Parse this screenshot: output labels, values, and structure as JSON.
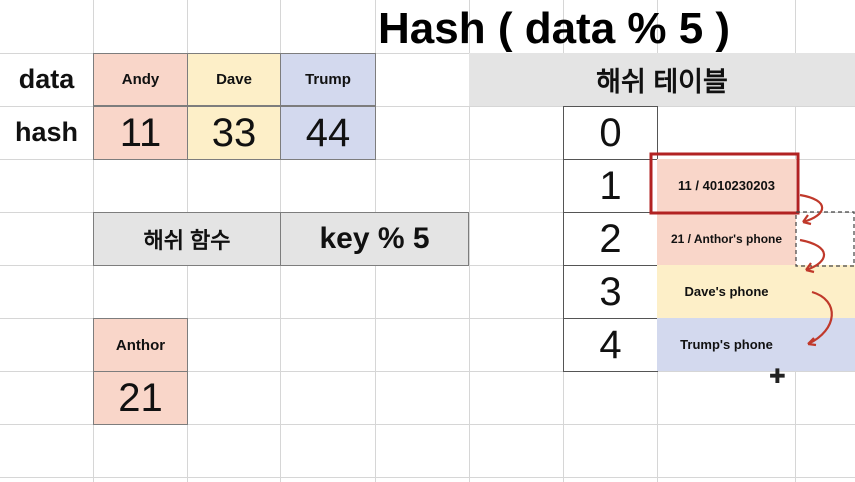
{
  "title": "Hash ( data % 5 )",
  "labels": {
    "data": "data",
    "hash": "hash"
  },
  "data_row": [
    {
      "name": "Andy",
      "hash": "11",
      "color": "#f9d6c9"
    },
    {
      "name": "Dave",
      "hash": "33",
      "color": "#fdefc8"
    },
    {
      "name": "Trump",
      "hash": "44",
      "color": "#d3d9ee"
    }
  ],
  "hash_function": {
    "label": "해쉬 함수",
    "formula": "key % 5"
  },
  "extra": {
    "name": "Anthor",
    "hash": "21"
  },
  "hash_table": {
    "header": "해쉬 테이블",
    "buckets": [
      {
        "index": "0",
        "entry": ""
      },
      {
        "index": "1",
        "entry": "11 / 4010230203"
      },
      {
        "index": "2",
        "entry": "21 / Anthor's phone"
      },
      {
        "index": "3",
        "entry": "Dave's phone"
      },
      {
        "index": "4",
        "entry": "Trump's phone"
      }
    ]
  },
  "colors": {
    "highlight": "#b22222",
    "arrow": "#c0392b"
  }
}
